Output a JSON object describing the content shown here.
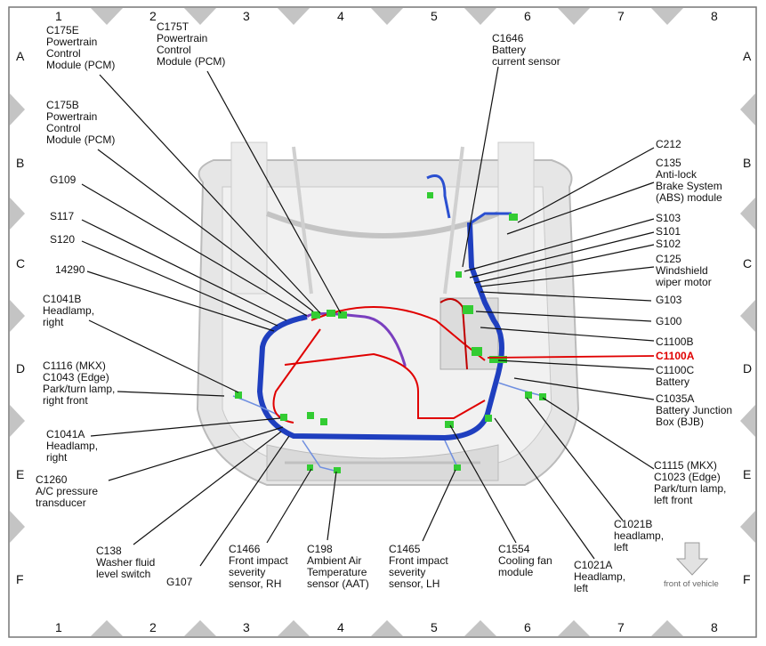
{
  "grid": {
    "columns": [
      "1",
      "2",
      "3",
      "4",
      "5",
      "6",
      "7",
      "8"
    ],
    "rows": [
      "A",
      "B",
      "C",
      "D",
      "E",
      "F"
    ]
  },
  "orientation": {
    "label": "front of vehicle",
    "icon": "arrow-down-icon"
  },
  "highlight_color": "#e00000",
  "harness_color": "#1f3fbf",
  "connector_color": "#33cc33",
  "labels": [
    {
      "lines": [
        "C175E",
        "Powertrain",
        "Control",
        "Module (PCM)"
      ]
    },
    {
      "lines": [
        "C175T",
        "Powertrain",
        "Control",
        "Module (PCM)"
      ]
    },
    {
      "lines": [
        "C175B",
        "Powertrain",
        "Control",
        "Module (PCM)"
      ]
    },
    {
      "lines": [
        "G109"
      ]
    },
    {
      "lines": [
        "S117"
      ]
    },
    {
      "lines": [
        "S120"
      ]
    },
    {
      "lines": [
        "14290"
      ]
    },
    {
      "lines": [
        "C1041B",
        "Headlamp,",
        "right"
      ]
    },
    {
      "lines": [
        "C1116 (MKX)",
        "C1043 (Edge)",
        "Park/turn lamp,",
        "right front"
      ]
    },
    {
      "lines": [
        "C1041A",
        "Headlamp,",
        "right"
      ]
    },
    {
      "lines": [
        "C1260",
        "A/C pressure",
        "transducer"
      ]
    },
    {
      "lines": [
        "C138",
        "Washer fluid",
        "level switch"
      ]
    },
    {
      "lines": [
        "G107"
      ]
    },
    {
      "lines": [
        "C1466",
        "Front impact",
        "severity",
        "sensor, RH"
      ]
    },
    {
      "lines": [
        "C198",
        "Ambient Air",
        "Temperature",
        "sensor (AAT)"
      ]
    },
    {
      "lines": [
        "C1465",
        "Front impact",
        "severity",
        "sensor, LH"
      ]
    },
    {
      "lines": [
        "C1554",
        "Cooling fan",
        "module"
      ]
    },
    {
      "lines": [
        "C1021A",
        "Headlamp,",
        "left"
      ]
    },
    {
      "lines": [
        "C1021B",
        "headlamp,",
        "left"
      ]
    },
    {
      "lines": [
        "C1115 (MKX)",
        "C1023 (Edge)",
        "Park/turn lamp,",
        "left front"
      ]
    },
    {
      "lines": [
        "C1035A",
        "Battery Junction",
        "Box (BJB)"
      ]
    },
    {
      "lines": [
        "C1100C",
        "Battery"
      ]
    },
    {
      "lines": [
        "C1100A"
      ],
      "highlighted": true
    },
    {
      "lines": [
        "C1100B"
      ]
    },
    {
      "lines": [
        "G100"
      ]
    },
    {
      "lines": [
        "G103"
      ]
    },
    {
      "lines": [
        "C125",
        "Windshield",
        "wiper motor"
      ]
    },
    {
      "lines": [
        "S102"
      ]
    },
    {
      "lines": [
        "S101"
      ]
    },
    {
      "lines": [
        "S103"
      ]
    },
    {
      "lines": [
        "C135",
        "Anti-lock",
        "Brake System",
        "(ABS) module"
      ]
    },
    {
      "lines": [
        "C212"
      ]
    },
    {
      "lines": [
        "C1646",
        "Battery",
        "current sensor"
      ]
    }
  ]
}
